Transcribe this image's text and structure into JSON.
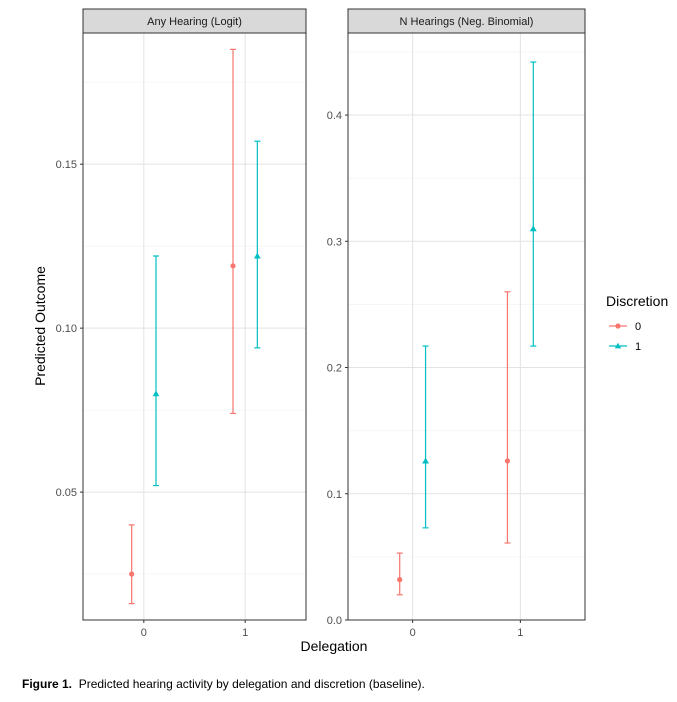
{
  "chart_data": {
    "type": "scatter",
    "x_title": "Delegation",
    "y_title": "Predicted Outcome",
    "legend": {
      "title": "Discretion",
      "placement": "right",
      "entries": [
        {
          "label": "0",
          "color": "#F8766D",
          "shape": "circle"
        },
        {
          "label": "1",
          "color": "#00BFC4",
          "shape": "triangle"
        }
      ]
    },
    "grid": true,
    "panels": [
      {
        "strip": "Any Hearing (Logit)",
        "x_categories": [
          "0",
          "1"
        ],
        "ylim": [
          0.011,
          0.19
        ],
        "y_ticks": [
          0.05,
          0.1,
          0.15
        ],
        "y_tick_labels": [
          "0.05",
          "0.10",
          "0.15"
        ],
        "points": [
          {
            "delegation": "0",
            "discretion": "0",
            "estimate": 0.025,
            "lower": 0.016,
            "upper": 0.04
          },
          {
            "delegation": "0",
            "discretion": "1",
            "estimate": 0.08,
            "lower": 0.052,
            "upper": 0.122
          },
          {
            "delegation": "1",
            "discretion": "0",
            "estimate": 0.119,
            "lower": 0.074,
            "upper": 0.185
          },
          {
            "delegation": "1",
            "discretion": "1",
            "estimate": 0.122,
            "lower": 0.094,
            "upper": 0.157
          }
        ]
      },
      {
        "strip": "N Hearings (Neg. Binomial)",
        "x_categories": [
          "0",
          "1"
        ],
        "ylim": [
          0.0,
          0.465
        ],
        "y_ticks": [
          0.0,
          0.1,
          0.2,
          0.3,
          0.4
        ],
        "y_tick_labels": [
          "0.0",
          "0.1",
          "0.2",
          "0.3",
          "0.4"
        ],
        "points": [
          {
            "delegation": "0",
            "discretion": "0",
            "estimate": 0.032,
            "lower": 0.02,
            "upper": 0.053
          },
          {
            "delegation": "0",
            "discretion": "1",
            "estimate": 0.126,
            "lower": 0.073,
            "upper": 0.217
          },
          {
            "delegation": "1",
            "discretion": "0",
            "estimate": 0.126,
            "lower": 0.061,
            "upper": 0.26
          },
          {
            "delegation": "1",
            "discretion": "1",
            "estimate": 0.31,
            "lower": 0.217,
            "upper": 0.442
          }
        ]
      }
    ]
  },
  "caption": {
    "label": "Figure 1.",
    "text": "Predicted hearing activity by delegation and discretion (baseline)."
  }
}
